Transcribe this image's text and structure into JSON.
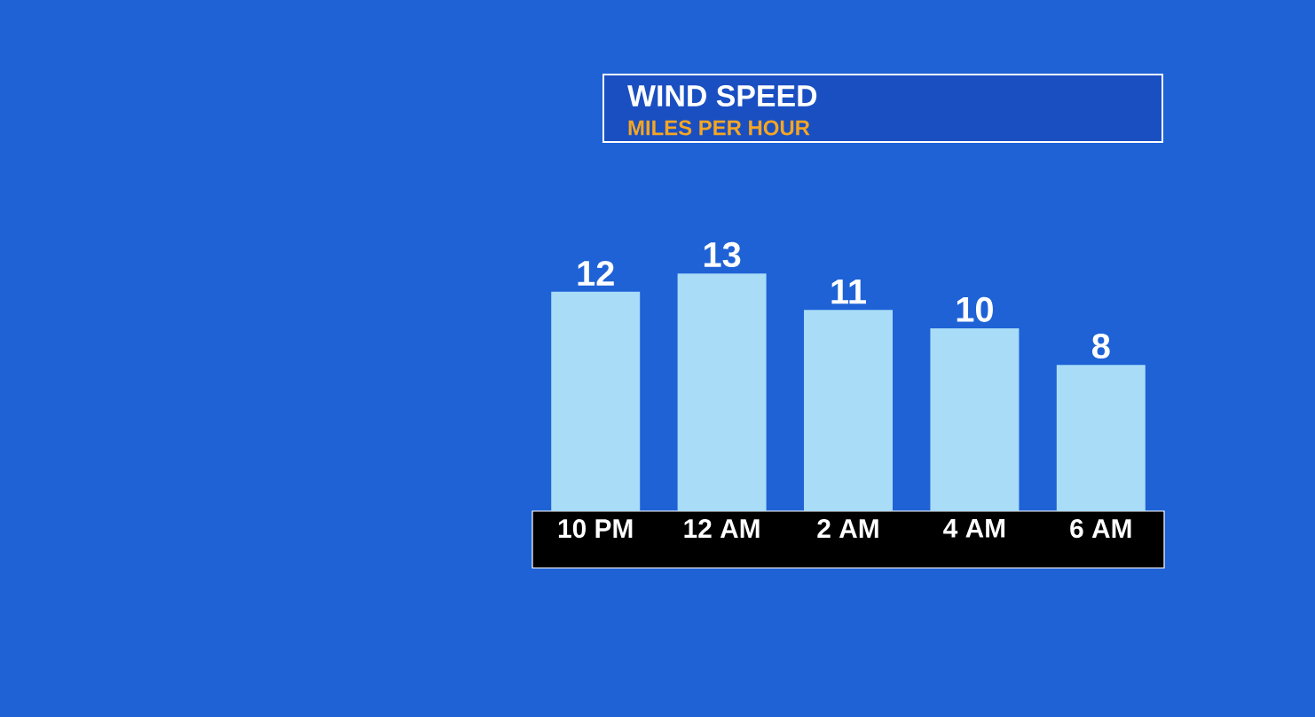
{
  "chart_data": {
    "type": "bar",
    "title": "WIND SPEED",
    "subtitle": "MILES PER HOUR",
    "categories": [
      "10 PM",
      "12 AM",
      "2 AM",
      "4 AM",
      "6 AM"
    ],
    "values": [
      12,
      13,
      11,
      10,
      8
    ],
    "color": "#a9dcf7",
    "data_labels": true
  }
}
